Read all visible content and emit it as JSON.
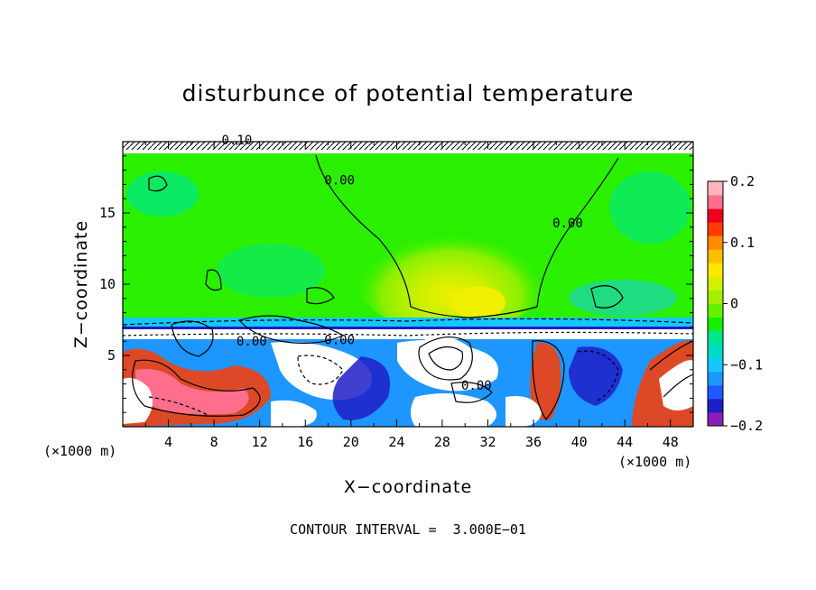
{
  "chart_data": {
    "type": "heatmap",
    "title": "disturbunce of potential temperature",
    "xlabel": "X−coordinate",
    "ylabel": "Z−coordinate",
    "x_unit_left": "(×1000 m)",
    "x_unit_right": "(×1000 m)",
    "xlim": [
      0,
      50
    ],
    "ylim": [
      0,
      20
    ],
    "x_ticks": [
      4,
      8,
      12,
      16,
      20,
      24,
      28,
      32,
      36,
      40,
      44,
      48
    ],
    "y_ticks": [
      5,
      10,
      15
    ],
    "colorbar": {
      "range": [
        -0.2,
        0.2
      ],
      "tick_values": [
        0.2,
        0.1,
        0,
        -0.1,
        -0.2
      ],
      "tick_labels": [
        "0.2",
        "0.1",
        "0",
        "−0.1",
        "−0.2"
      ],
      "colors": [
        "#8c1eb4",
        "#1e1ec8",
        "#1e5aff",
        "#1e96ff",
        "#14c8ff",
        "#00dcc8",
        "#00e68c",
        "#14f000",
        "#64f000",
        "#a0f000",
        "#d2f000",
        "#ffe600",
        "#ffbe00",
        "#ff8c00",
        "#ff3c00",
        "#f0001e",
        "#ff6e8c",
        "#ffb4be"
      ]
    },
    "contour_interval_text": "CONTOUR INTERVAL =  3.000E−01",
    "contour_labels": [
      {
        "text": "0.00",
        "x": 19,
        "y": 17
      },
      {
        "text": "0.00",
        "x": 39,
        "y": 14
      },
      {
        "text": "0.00",
        "x": 11.3,
        "y": 5.7
      },
      {
        "text": "0.00",
        "x": 19,
        "y": 5.8
      },
      {
        "text": "0.00",
        "x": 31,
        "y": 2.6
      },
      {
        "text": "0.10",
        "x": 10,
        "y": 19.8
      }
    ]
  }
}
